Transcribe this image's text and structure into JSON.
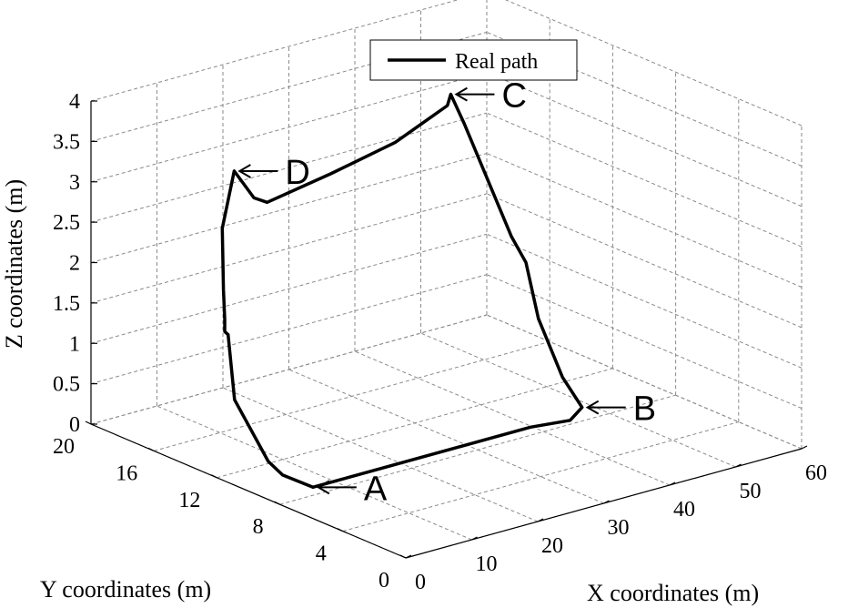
{
  "chart_data": {
    "type": "line3d",
    "title": "",
    "xlabel": "X coordinates (m)",
    "ylabel": "Y coordinates (m)",
    "zlabel": "Z coordinates (m)",
    "xlim": [
      0,
      60
    ],
    "ylim": [
      0,
      20
    ],
    "zlim": [
      0,
      4
    ],
    "xticks": [
      "0",
      "10",
      "20",
      "30",
      "40",
      "50",
      "60"
    ],
    "yticks": [
      "0",
      "4",
      "8",
      "12",
      "16",
      "20"
    ],
    "zticks": [
      "0",
      "0.5",
      "1",
      "1.5",
      "2",
      "2.5",
      "3",
      "3.5",
      "4"
    ],
    "grid": true,
    "legend": {
      "position": "top-center",
      "entries": [
        "Real path"
      ]
    },
    "series": [
      {
        "name": "Real path",
        "points": [
          [
            5,
            8,
            0.1
          ],
          [
            15,
            8,
            0.1
          ],
          [
            27,
            8,
            0.1
          ],
          [
            38,
            8,
            0.1
          ],
          [
            44,
            8,
            0.05
          ],
          [
            47,
            8.5,
            0.1
          ],
          [
            50,
            11,
            0.2
          ],
          [
            53.5,
            14,
            0.6
          ],
          [
            54,
            15,
            1.2
          ],
          [
            53,
            15.5,
            1.5
          ],
          [
            47,
            16,
            3.0
          ],
          [
            45,
            16,
            3.4
          ],
          [
            44,
            15.8,
            3.3
          ],
          [
            33,
            14.5,
            3.2
          ],
          [
            22,
            14,
            3.1
          ],
          [
            10,
            13,
            3.1
          ],
          [
            8,
            13,
            3.2
          ],
          [
            5,
            13,
            3.6
          ],
          [
            2,
            12.5,
            3.0
          ],
          [
            1,
            12,
            2.3
          ],
          [
            0,
            11.5,
            2.0
          ],
          [
            0,
            11.5,
            1.85
          ],
          [
            0.5,
            11.5,
            1.8
          ],
          [
            1,
            11.3,
            1.0
          ],
          [
            3,
            10,
            0.3
          ],
          [
            4,
            9.5,
            0.15
          ],
          [
            5,
            8,
            0.1
          ]
        ]
      }
    ],
    "annotations": [
      {
        "label": "A",
        "point": [
          5,
          8,
          0.1
        ]
      },
      {
        "label": "B",
        "point": [
          47,
          8.5,
          0.1
        ]
      },
      {
        "label": "C",
        "point": [
          45,
          16,
          3.4
        ]
      },
      {
        "label": "D",
        "point": [
          5,
          13,
          3.6
        ]
      }
    ]
  }
}
